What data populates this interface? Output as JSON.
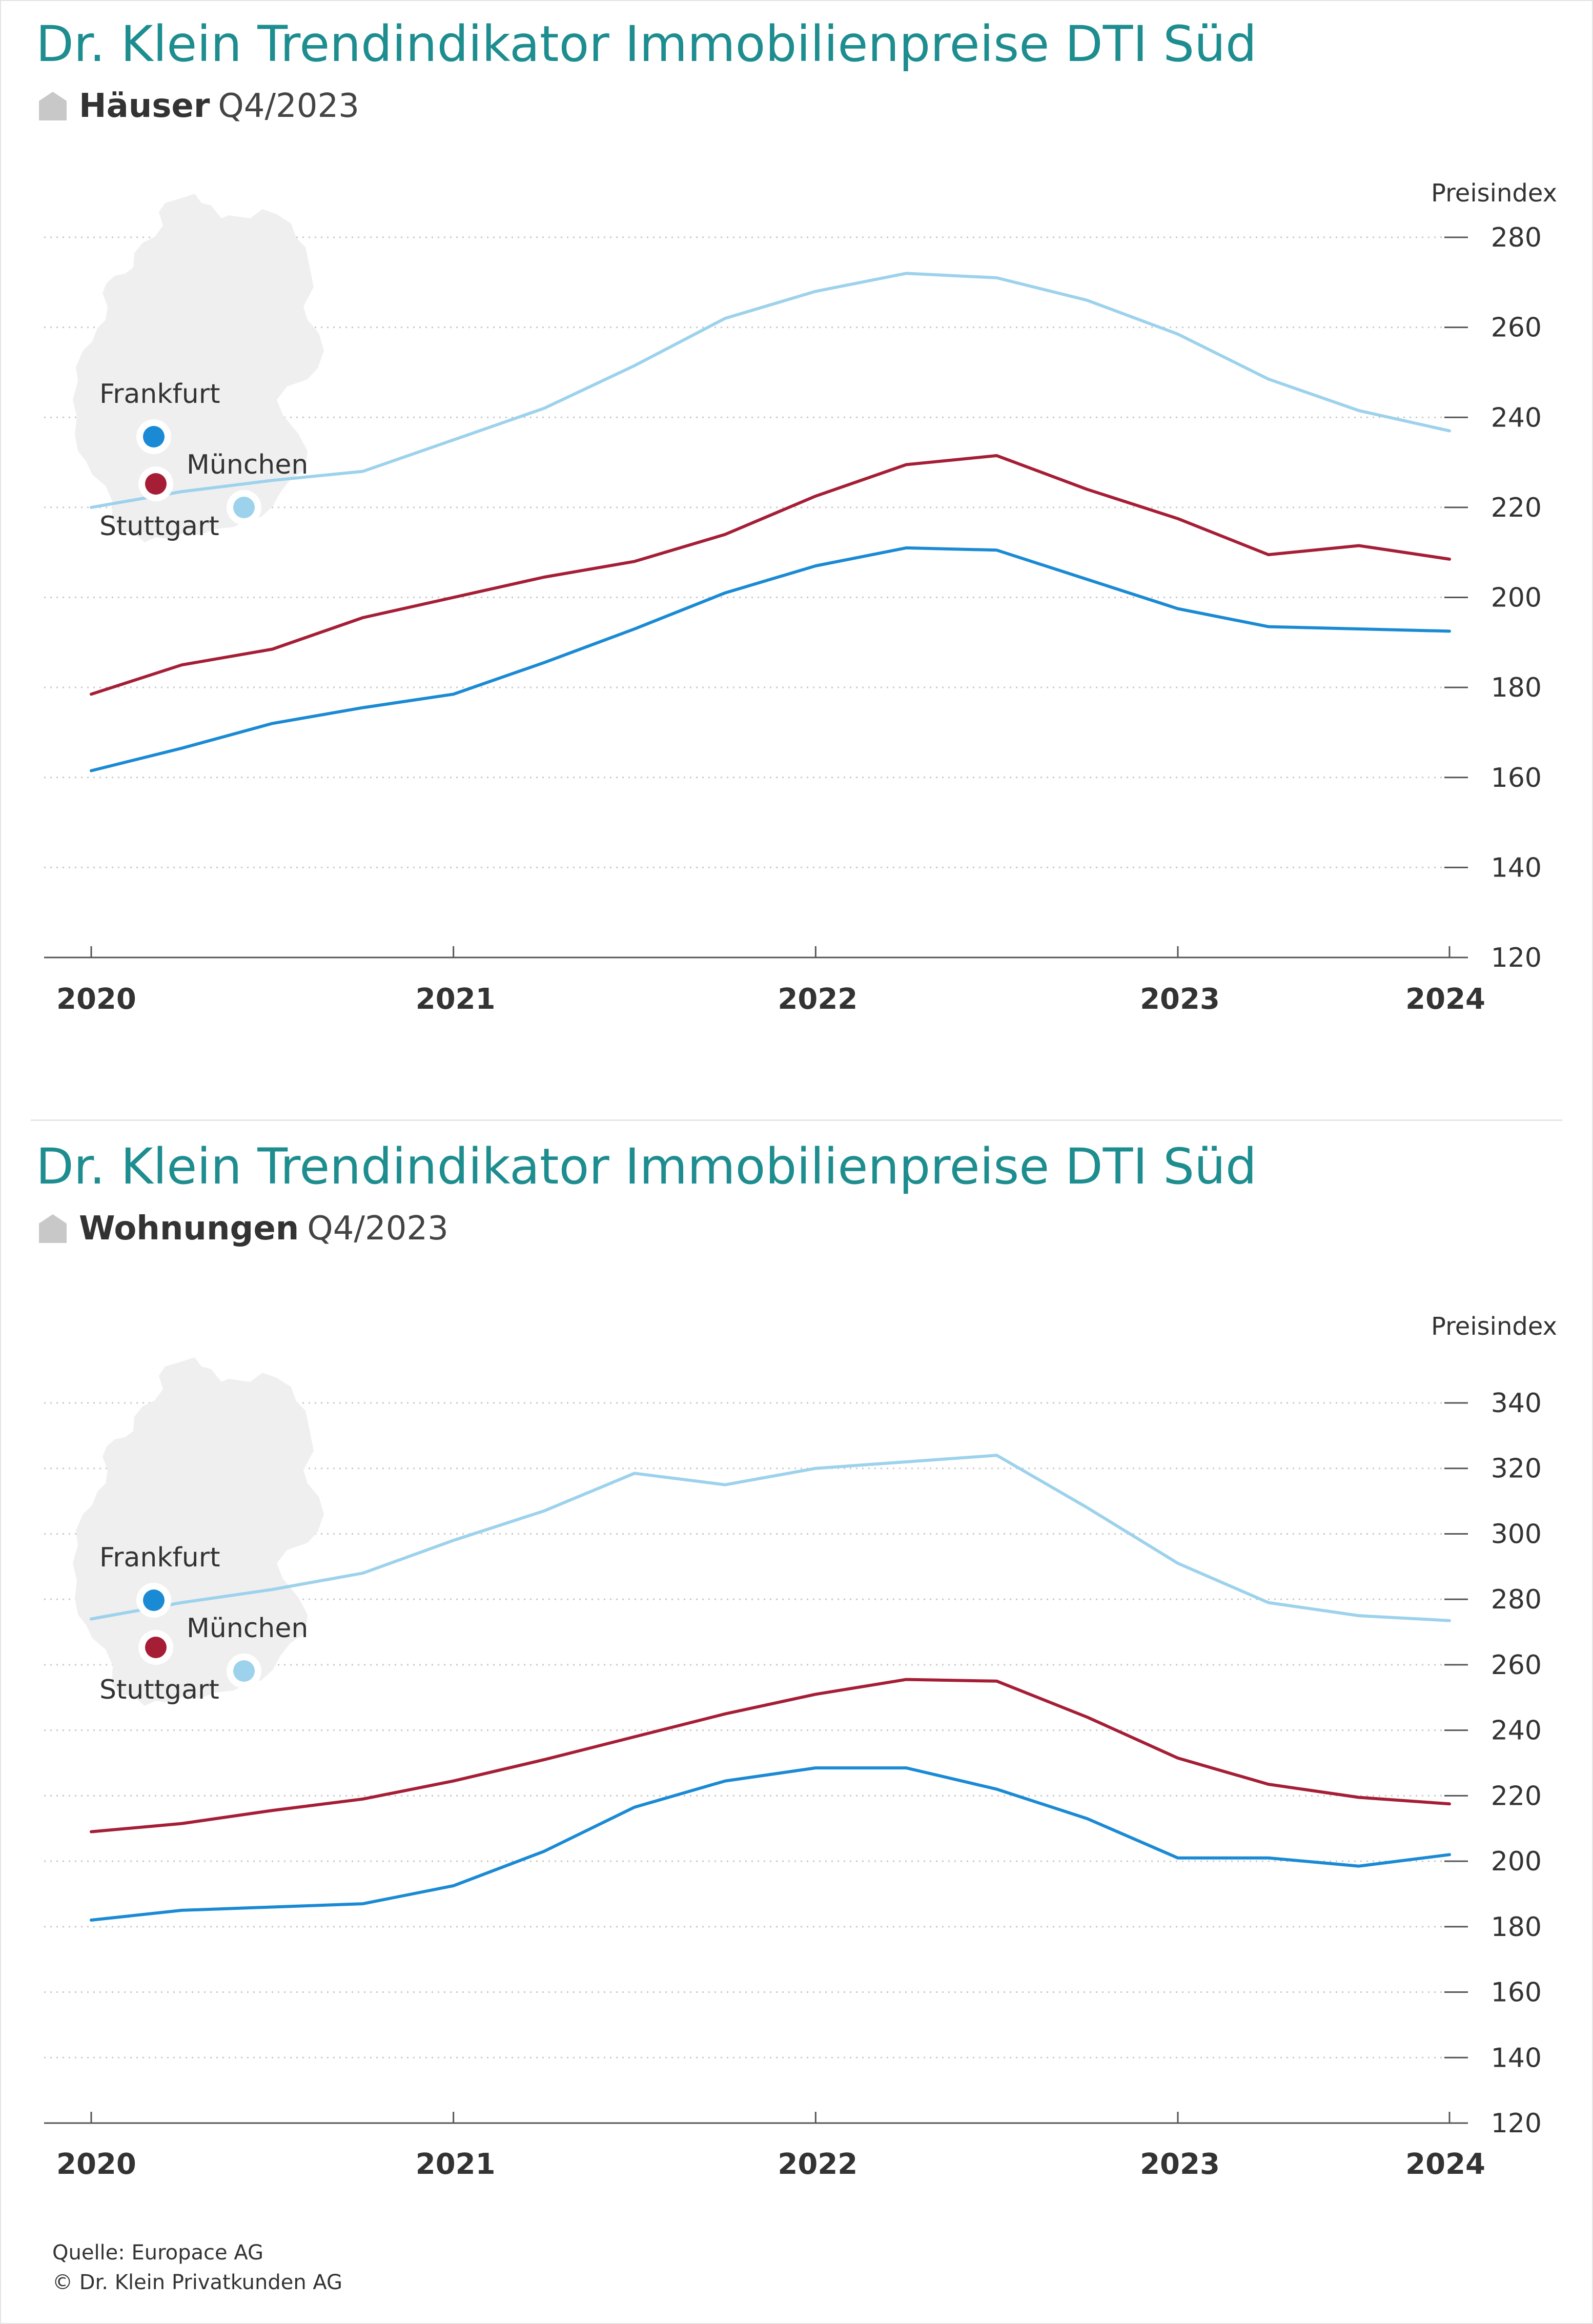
{
  "charts": [
    {
      "title": "Dr. Klein Trendindikator Immobilienpreise DTI Süd",
      "subtitle_strong": "Häuser",
      "subtitle_period": "Q4/2023",
      "icon": "house-icon",
      "map_icon": "germany-map-icon",
      "unit_label": "Preisindex"
    },
    {
      "title": "Dr. Klein Trendindikator Immobilienpreise DTI Süd",
      "subtitle_strong": "Wohnungen",
      "subtitle_period": "Q4/2023",
      "icon": "house-icon",
      "map_icon": "germany-map-icon",
      "unit_label": "Preisindex"
    }
  ],
  "footer": {
    "source": "Quelle: Europace AG",
    "copyright": "© Dr. Klein Privatkunden AG"
  },
  "colors": {
    "title": "#1d8d8f",
    "Frankfurt": "#1a8ad4",
    "München": "#a51e36",
    "Stuttgart": "#9dd2ec",
    "grid": "#bdbdbd",
    "map": "#efefef"
  },
  "chart_data": [
    {
      "type": "line",
      "title": "Dr. Klein Trendindikator Immobilienpreise DTI Süd",
      "subtitle": "Häuser Q4/2023",
      "ylabel": "Preisindex",
      "ylim": [
        120,
        280
      ],
      "yticks": [
        120,
        140,
        160,
        180,
        200,
        220,
        240,
        260,
        280
      ],
      "xticks": [
        "2020",
        "2021",
        "2022",
        "2023",
        "2024"
      ],
      "x": [
        "Q1/2020",
        "Q2/2020",
        "Q3/2020",
        "Q4/2020",
        "Q1/2021",
        "Q2/2021",
        "Q3/2021",
        "Q4/2021",
        "Q1/2022",
        "Q2/2022",
        "Q3/2022",
        "Q4/2022",
        "Q1/2023",
        "Q2/2023",
        "Q3/2023",
        "Q4/2023"
      ],
      "series": [
        {
          "name": "Frankfurt",
          "color": "#1a8ad4",
          "values": [
            161.5,
            166.5,
            172,
            175.5,
            178.5,
            185.5,
            193,
            201,
            207,
            211,
            210.5,
            204,
            197.5,
            193.5,
            193,
            192.5
          ]
        },
        {
          "name": "München",
          "color": "#a51e36",
          "values": [
            178.5,
            185,
            188.5,
            195.5,
            200,
            204.5,
            208,
            214,
            222.5,
            229.5,
            231.5,
            224,
            217.5,
            209.5,
            211.5,
            208.5
          ]
        },
        {
          "name": "Stuttgart",
          "color": "#9dd2ec",
          "values": [
            220,
            223.5,
            226,
            228,
            235,
            242,
            251.5,
            262,
            268,
            272,
            271,
            266,
            258.5,
            248.5,
            241.5,
            237
          ]
        }
      ],
      "legend": "left, on map",
      "grid": true
    },
    {
      "type": "line",
      "title": "Dr. Klein Trendindikator Immobilienpreise DTI Süd",
      "subtitle": "Wohnungen Q4/2023",
      "ylabel": "Preisindex",
      "ylim": [
        120,
        340
      ],
      "yticks": [
        120,
        140,
        160,
        180,
        200,
        220,
        240,
        260,
        280,
        300,
        320,
        340
      ],
      "xticks": [
        "2020",
        "2021",
        "2022",
        "2023",
        "2024"
      ],
      "x": [
        "Q1/2020",
        "Q2/2020",
        "Q3/2020",
        "Q4/2020",
        "Q1/2021",
        "Q2/2021",
        "Q3/2021",
        "Q4/2021",
        "Q1/2022",
        "Q2/2022",
        "Q3/2022",
        "Q4/2022",
        "Q1/2023",
        "Q2/2023",
        "Q3/2023",
        "Q4/2023"
      ],
      "series": [
        {
          "name": "Frankfurt",
          "color": "#1a8ad4",
          "values": [
            182,
            185,
            186,
            187,
            192.5,
            203,
            216.5,
            224.5,
            228.5,
            228.5,
            222,
            213,
            201,
            201,
            198.5,
            202
          ]
        },
        {
          "name": "München",
          "color": "#a51e36",
          "values": [
            209,
            211.5,
            215.5,
            219,
            224.5,
            231,
            238,
            245,
            251,
            255.5,
            255,
            244,
            231.5,
            223.5,
            219.5,
            217.5
          ]
        },
        {
          "name": "Stuttgart",
          "color": "#9dd2ec",
          "values": [
            274,
            279,
            283,
            288,
            298,
            307,
            318.5,
            315,
            320,
            322,
            324,
            308,
            291,
            279,
            275,
            273.5
          ]
        }
      ],
      "legend": "left, on map",
      "grid": true
    }
  ]
}
